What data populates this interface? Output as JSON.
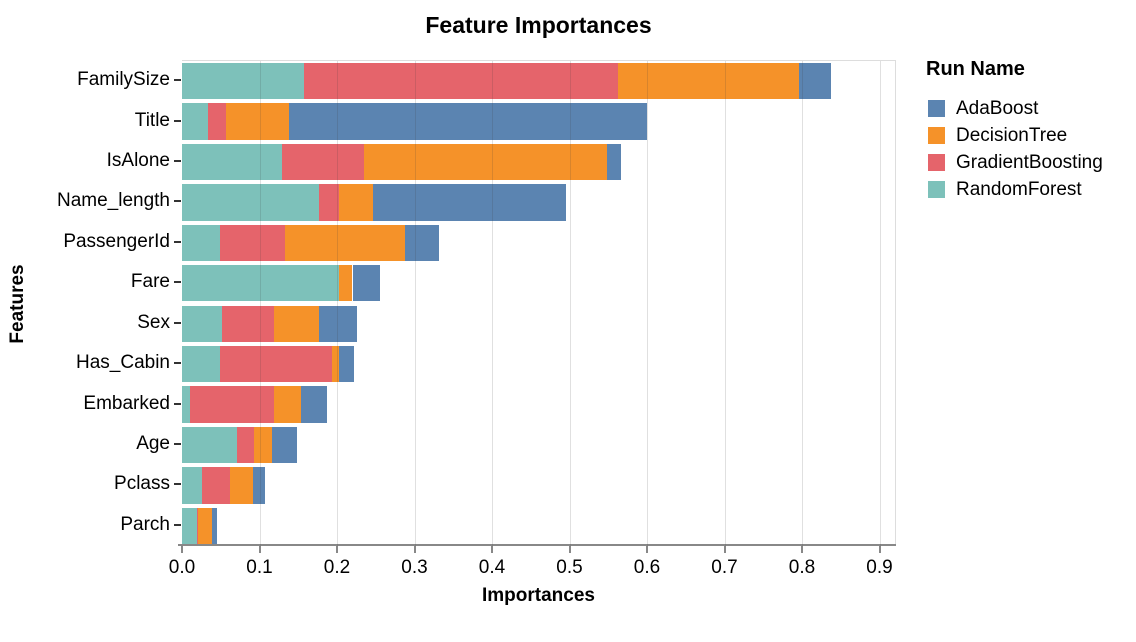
{
  "chart_data": {
    "type": "bar",
    "orientation": "horizontal",
    "stacked": true,
    "title": "Feature Importances",
    "xlabel": "Importances",
    "ylabel": "Features",
    "grid": true,
    "xlim": [
      0,
      0.92
    ],
    "xticks": [
      0.0,
      0.1,
      0.2,
      0.3,
      0.4,
      0.5,
      0.6,
      0.7,
      0.8,
      0.9
    ],
    "xtick_labels": [
      "0.0",
      "0.1",
      "0.2",
      "0.3",
      "0.4",
      "0.5",
      "0.6",
      "0.7",
      "0.8",
      "0.9"
    ],
    "categories": [
      "FamilySize",
      "Title",
      "IsAlone",
      "Name_length",
      "PassengerId",
      "Fare",
      "Sex",
      "Has_Cabin",
      "Embarked",
      "Age",
      "Pclass",
      "Parch"
    ],
    "series": [
      {
        "name": "RandomForest",
        "color": "#7dc1ba",
        "values": [
          0.157,
          0.034,
          0.129,
          0.177,
          0.049,
          0.203,
          0.052,
          0.049,
          0.01,
          0.071,
          0.026,
          0.019
        ]
      },
      {
        "name": "GradientBoosting",
        "color": "#e5646b",
        "values": [
          0.405,
          0.023,
          0.106,
          0.025,
          0.084,
          0.0,
          0.067,
          0.145,
          0.109,
          0.022,
          0.036,
          0.002
        ]
      },
      {
        "name": "DecisionTree",
        "color": "#f59229",
        "values": [
          0.234,
          0.081,
          0.313,
          0.044,
          0.155,
          0.017,
          0.058,
          0.008,
          0.034,
          0.023,
          0.03,
          0.018
        ]
      },
      {
        "name": "AdaBoost",
        "color": "#5b84b1",
        "values": [
          0.041,
          0.462,
          0.018,
          0.249,
          0.044,
          0.035,
          0.049,
          0.02,
          0.034,
          0.033,
          0.015,
          0.006
        ]
      }
    ],
    "legend": {
      "title": "Run Name",
      "position": "top-right",
      "entries": [
        {
          "label": "AdaBoost",
          "color": "#5b84b1"
        },
        {
          "label": "DecisionTree",
          "color": "#f59229"
        },
        {
          "label": "GradientBoosting",
          "color": "#e5646b"
        },
        {
          "label": "RandomForest",
          "color": "#7dc1ba"
        }
      ]
    }
  }
}
